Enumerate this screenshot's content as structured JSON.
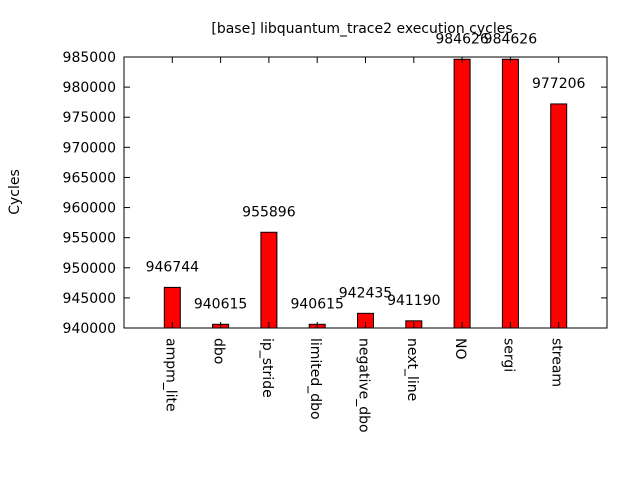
{
  "chart_data": {
    "type": "bar",
    "title": "[base] libquantum_trace2 execution cycles",
    "xlabel": "",
    "ylabel": "Cycles",
    "categories": [
      "ampm_lite",
      "dbo",
      "ip_stride",
      "limited_dbo",
      "negative_dbo",
      "next_line",
      "NO",
      "sergi",
      "stream"
    ],
    "values": [
      946744,
      940615,
      955896,
      940615,
      942435,
      941190,
      984626,
      984626,
      977206
    ],
    "data_labels": [
      "946744",
      "940615",
      "955896",
      "940615",
      "942435",
      "941190",
      "984626",
      "984626",
      "977206"
    ],
    "ylim": [
      940000,
      985000
    ],
    "yticks": [
      940000,
      945000,
      950000,
      955000,
      960000,
      965000,
      970000,
      975000,
      980000,
      985000
    ],
    "ytick_labels": [
      "940000",
      "945000",
      "950000",
      "955000",
      "960000",
      "965000",
      "970000",
      "975000",
      "980000",
      "985000"
    ],
    "bar_color": "#ff0000",
    "grid": false,
    "legend": "none"
  }
}
